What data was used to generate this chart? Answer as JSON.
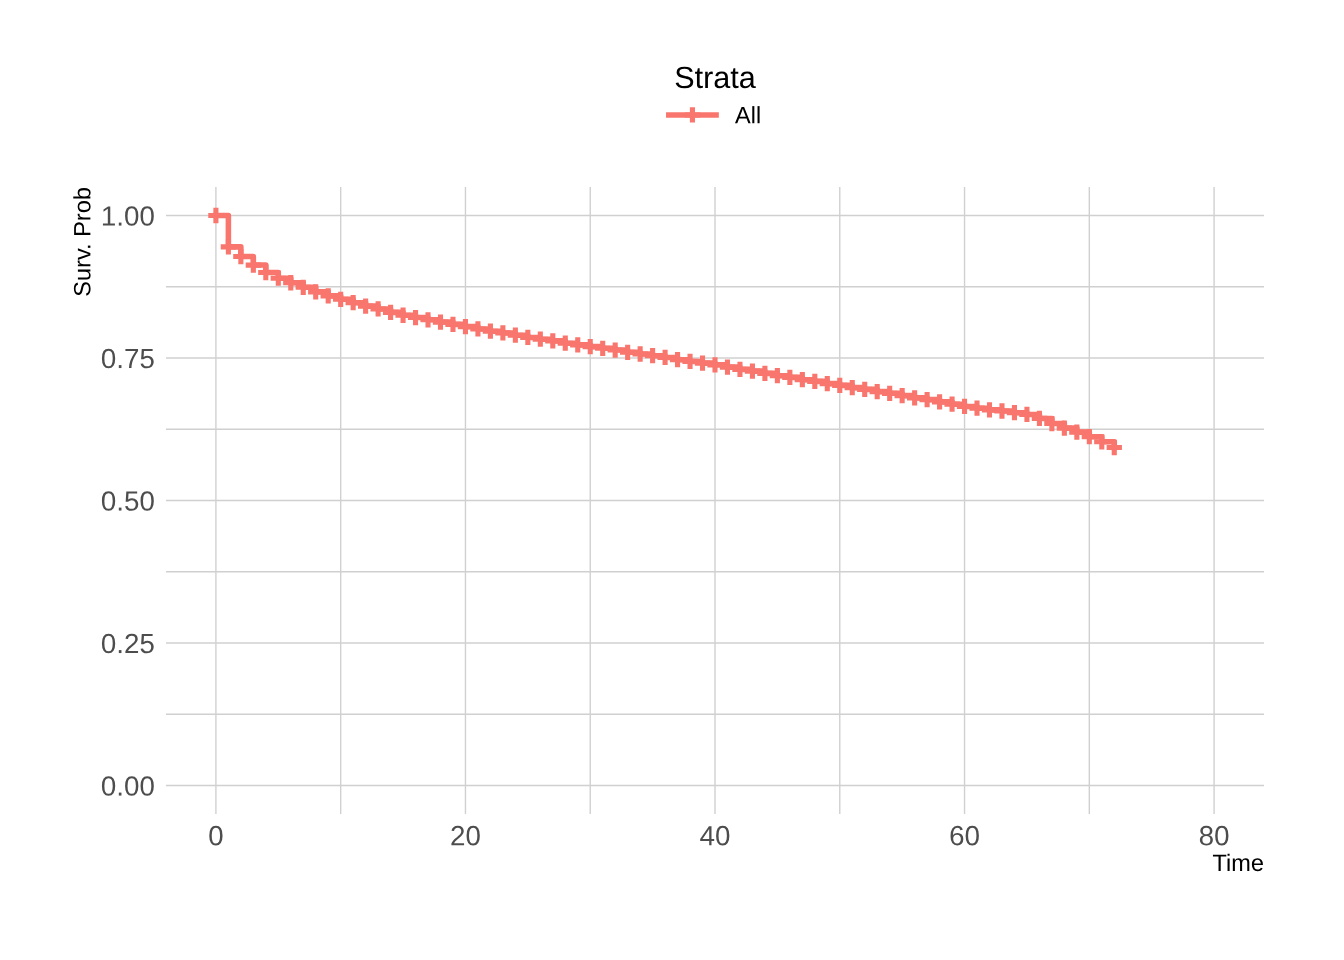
{
  "chart_data": {
    "type": "step",
    "xlabel": "Time",
    "ylabel": "Surv. Prob",
    "legend_title": "Strata",
    "legend": "top",
    "grid": true,
    "marker": "cross",
    "line_style": "solid",
    "xlim": [
      -4,
      84
    ],
    "ylim": [
      -0.05,
      1.05
    ],
    "xticks": [
      0,
      {
        "value": 10,
        "label": null
      },
      20,
      {
        "value": 30,
        "label": null
      },
      40,
      {
        "value": 50,
        "label": null
      },
      60,
      {
        "value": 70,
        "label": null
      },
      80
    ],
    "yticks": [
      {
        "value": 0,
        "label": "0.00"
      },
      {
        "value": 0.125,
        "label": null
      },
      {
        "value": 0.25,
        "label": "0.25"
      },
      {
        "value": 0.375,
        "label": null
      },
      {
        "value": 0.5,
        "label": "0.50"
      },
      {
        "value": 0.625,
        "label": null
      },
      {
        "value": 0.75,
        "label": "0.75"
      },
      {
        "value": 0.875,
        "label": null
      },
      {
        "value": 1,
        "label": "1.00"
      }
    ],
    "x": [
      0,
      1,
      2,
      3,
      4,
      5,
      6,
      7,
      8,
      9,
      10,
      11,
      12,
      13,
      14,
      15,
      16,
      17,
      18,
      19,
      20,
      21,
      22,
      23,
      24,
      25,
      26,
      27,
      28,
      29,
      30,
      31,
      32,
      33,
      34,
      35,
      36,
      37,
      38,
      39,
      40,
      41,
      42,
      43,
      44,
      45,
      46,
      47,
      48,
      49,
      50,
      51,
      52,
      53,
      54,
      55,
      56,
      57,
      58,
      59,
      60,
      61,
      62,
      63,
      64,
      65,
      66,
      67,
      68,
      69,
      70,
      71,
      72
    ],
    "series": [
      {
        "name": "All",
        "color": "#f8766d",
        "values": [
          1.0,
          0.945,
          0.928,
          0.913,
          0.9,
          0.89,
          0.882,
          0.874,
          0.866,
          0.859,
          0.853,
          0.847,
          0.841,
          0.836,
          0.83,
          0.825,
          0.821,
          0.817,
          0.813,
          0.809,
          0.805,
          0.801,
          0.797,
          0.794,
          0.79,
          0.786,
          0.783,
          0.78,
          0.776,
          0.773,
          0.77,
          0.767,
          0.764,
          0.76,
          0.757,
          0.754,
          0.751,
          0.747,
          0.744,
          0.741,
          0.738,
          0.734,
          0.73,
          0.727,
          0.723,
          0.719,
          0.716,
          0.712,
          0.709,
          0.705,
          0.702,
          0.698,
          0.695,
          0.691,
          0.688,
          0.684,
          0.68,
          0.677,
          0.673,
          0.669,
          0.665,
          0.662,
          0.659,
          0.657,
          0.654,
          0.651,
          0.644,
          0.635,
          0.627,
          0.62,
          0.612,
          0.603,
          0.593
        ]
      }
    ]
  }
}
